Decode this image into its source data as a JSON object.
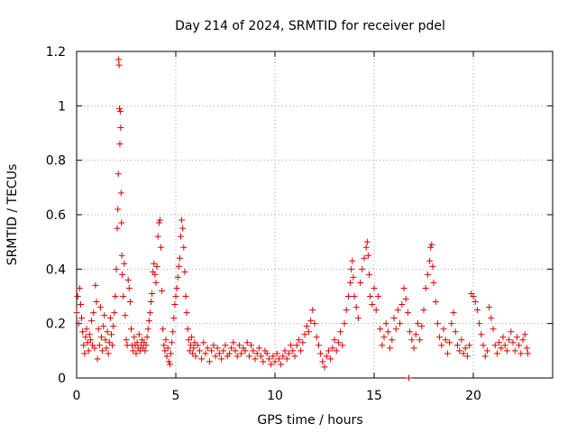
{
  "chart_data": {
    "type": "scatter",
    "title": "Day 214 of 2024, SRMTID for receiver pdel",
    "xlabel": "GPS time / hours",
    "ylabel": "SRMTID / TECUs",
    "xlim": [
      0,
      24
    ],
    "ylim": [
      0,
      1.2
    ],
    "xticks": [
      0,
      5,
      10,
      15,
      20
    ],
    "yticks": [
      0,
      0.2,
      0.4,
      0.6,
      0.8,
      1.0,
      1.2
    ],
    "xtick_labels": [
      "0",
      "5",
      "10",
      "15",
      "20"
    ],
    "ytick_labels": [
      "0",
      "0.2",
      "0.4",
      "0.6",
      "0.8",
      "1",
      "1.2"
    ],
    "grid": true,
    "marker": "+",
    "marker_color": "#e00000",
    "series": [
      {
        "name": "SRMTID",
        "points": [
          [
            0.0,
            0.24
          ],
          [
            0.05,
            0.3
          ],
          [
            0.1,
            0.2
          ],
          [
            0.15,
            0.33
          ],
          [
            0.2,
            0.27
          ],
          [
            0.25,
            0.22
          ],
          [
            0.3,
            0.17
          ],
          [
            0.35,
            0.12
          ],
          [
            0.4,
            0.09
          ],
          [
            0.45,
            0.15
          ],
          [
            0.5,
            0.18
          ],
          [
            0.55,
            0.13
          ],
          [
            0.6,
            0.1
          ],
          [
            0.65,
            0.16
          ],
          [
            0.7,
            0.14
          ],
          [
            0.75,
            0.21
          ],
          [
            0.8,
            0.12
          ],
          [
            0.85,
            0.24
          ],
          [
            0.9,
            0.11
          ],
          [
            0.95,
            0.34
          ],
          [
            1.0,
            0.28
          ],
          [
            1.05,
            0.07
          ],
          [
            1.1,
            0.18
          ],
          [
            1.15,
            0.12
          ],
          [
            1.2,
            0.26
          ],
          [
            1.25,
            0.15
          ],
          [
            1.3,
            0.1
          ],
          [
            1.35,
            0.19
          ],
          [
            1.4,
            0.23
          ],
          [
            1.45,
            0.14
          ],
          [
            1.5,
            0.11
          ],
          [
            1.55,
            0.17
          ],
          [
            1.6,
            0.09
          ],
          [
            1.65,
            0.13
          ],
          [
            1.7,
            0.22
          ],
          [
            1.75,
            0.16
          ],
          [
            1.8,
            0.12
          ],
          [
            1.85,
            0.19
          ],
          [
            1.9,
            0.24
          ],
          [
            1.95,
            0.3
          ],
          [
            2.0,
            0.4
          ],
          [
            2.05,
            0.55
          ],
          [
            2.08,
            0.62
          ],
          [
            2.1,
            0.75
          ],
          [
            2.12,
            1.17
          ],
          [
            2.14,
            1.15
          ],
          [
            2.16,
            0.99
          ],
          [
            2.18,
            0.86
          ],
          [
            2.2,
            0.98
          ],
          [
            2.22,
            0.92
          ],
          [
            2.24,
            0.68
          ],
          [
            2.26,
            0.57
          ],
          [
            2.28,
            0.45
          ],
          [
            2.3,
            0.38
          ],
          [
            2.35,
            0.3
          ],
          [
            2.4,
            0.42
          ],
          [
            2.45,
            0.23
          ],
          [
            2.5,
            0.14
          ],
          [
            2.55,
            0.12
          ],
          [
            2.6,
            0.36
          ],
          [
            2.65,
            0.33
          ],
          [
            2.7,
            0.28
          ],
          [
            2.75,
            0.18
          ],
          [
            2.8,
            0.12
          ],
          [
            2.85,
            0.1
          ],
          [
            2.9,
            0.15
          ],
          [
            2.95,
            0.12
          ],
          [
            3.0,
            0.09
          ],
          [
            3.05,
            0.13
          ],
          [
            3.1,
            0.11
          ],
          [
            3.15,
            0.16
          ],
          [
            3.2,
            0.1
          ],
          [
            3.25,
            0.12
          ],
          [
            3.3,
            0.14
          ],
          [
            3.35,
            0.11
          ],
          [
            3.4,
            0.13
          ],
          [
            3.45,
            0.1
          ],
          [
            3.5,
            0.12
          ],
          [
            3.55,
            0.15
          ],
          [
            3.6,
            0.18
          ],
          [
            3.65,
            0.21
          ],
          [
            3.7,
            0.24
          ],
          [
            3.75,
            0.28
          ],
          [
            3.8,
            0.31
          ],
          [
            3.85,
            0.39
          ],
          [
            3.9,
            0.42
          ],
          [
            3.95,
            0.38
          ],
          [
            4.0,
            0.35
          ],
          [
            4.05,
            0.41
          ],
          [
            4.1,
            0.52
          ],
          [
            4.15,
            0.57
          ],
          [
            4.2,
            0.58
          ],
          [
            4.25,
            0.48
          ],
          [
            4.3,
            0.32
          ],
          [
            4.35,
            0.18
          ],
          [
            4.4,
            0.12
          ],
          [
            4.45,
            0.1
          ],
          [
            4.5,
            0.14
          ],
          [
            4.55,
            0.08
          ],
          [
            4.6,
            0.11
          ],
          [
            4.65,
            0.06
          ],
          [
            4.7,
            0.05
          ],
          [
            4.75,
            0.09
          ],
          [
            4.8,
            0.13
          ],
          [
            4.85,
            0.17
          ],
          [
            4.9,
            0.22
          ],
          [
            4.95,
            0.27
          ],
          [
            5.0,
            0.3
          ],
          [
            5.05,
            0.33
          ],
          [
            5.1,
            0.37
          ],
          [
            5.15,
            0.41
          ],
          [
            5.2,
            0.44
          ],
          [
            5.25,
            0.52
          ],
          [
            5.3,
            0.58
          ],
          [
            5.35,
            0.55
          ],
          [
            5.4,
            0.48
          ],
          [
            5.45,
            0.39
          ],
          [
            5.5,
            0.3
          ],
          [
            5.55,
            0.24
          ],
          [
            5.6,
            0.18
          ],
          [
            5.65,
            0.14
          ],
          [
            5.7,
            0.1
          ],
          [
            5.75,
            0.12
          ],
          [
            5.8,
            0.15
          ],
          [
            5.85,
            0.09
          ],
          [
            5.9,
            0.11
          ],
          [
            5.95,
            0.13
          ],
          [
            6.0,
            0.08
          ],
          [
            6.1,
            0.12
          ],
          [
            6.2,
            0.1
          ],
          [
            6.3,
            0.07
          ],
          [
            6.4,
            0.13
          ],
          [
            6.5,
            0.09
          ],
          [
            6.6,
            0.11
          ],
          [
            6.7,
            0.06
          ],
          [
            6.8,
            0.1
          ],
          [
            6.9,
            0.12
          ],
          [
            7.0,
            0.08
          ],
          [
            7.1,
            0.11
          ],
          [
            7.2,
            0.09
          ],
          [
            7.3,
            0.07
          ],
          [
            7.4,
            0.1
          ],
          [
            7.5,
            0.12
          ],
          [
            7.6,
            0.08
          ],
          [
            7.7,
            0.09
          ],
          [
            7.8,
            0.11
          ],
          [
            7.9,
            0.13
          ],
          [
            8.0,
            0.1
          ],
          [
            8.1,
            0.08
          ],
          [
            8.2,
            0.12
          ],
          [
            8.3,
            0.09
          ],
          [
            8.4,
            0.11
          ],
          [
            8.5,
            0.1
          ],
          [
            8.6,
            0.13
          ],
          [
            8.7,
            0.08
          ],
          [
            8.8,
            0.12
          ],
          [
            8.9,
            0.1
          ],
          [
            9.0,
            0.07
          ],
          [
            9.1,
            0.09
          ],
          [
            9.2,
            0.11
          ],
          [
            9.3,
            0.08
          ],
          [
            9.4,
            0.06
          ],
          [
            9.5,
            0.1
          ],
          [
            9.6,
            0.09
          ],
          [
            9.7,
            0.07
          ],
          [
            9.8,
            0.05
          ],
          [
            9.9,
            0.08
          ],
          [
            10.0,
            0.06
          ],
          [
            10.1,
            0.09
          ],
          [
            10.2,
            0.07
          ],
          [
            10.3,
            0.05
          ],
          [
            10.4,
            0.08
          ],
          [
            10.5,
            0.1
          ],
          [
            10.6,
            0.07
          ],
          [
            10.7,
            0.09
          ],
          [
            10.8,
            0.12
          ],
          [
            10.9,
            0.1
          ],
          [
            11.0,
            0.08
          ],
          [
            11.1,
            0.12
          ],
          [
            11.2,
            0.14
          ],
          [
            11.3,
            0.1
          ],
          [
            11.4,
            0.13
          ],
          [
            11.5,
            0.16
          ],
          [
            11.6,
            0.19
          ],
          [
            11.7,
            0.17
          ],
          [
            11.8,
            0.21
          ],
          [
            11.9,
            0.25
          ],
          [
            12.0,
            0.2
          ],
          [
            12.1,
            0.15
          ],
          [
            12.2,
            0.12
          ],
          [
            12.3,
            0.09
          ],
          [
            12.4,
            0.06
          ],
          [
            12.5,
            0.04
          ],
          [
            12.6,
            0.08
          ],
          [
            12.7,
            0.1
          ],
          [
            12.8,
            0.07
          ],
          [
            12.9,
            0.11
          ],
          [
            13.0,
            0.14
          ],
          [
            13.1,
            0.1
          ],
          [
            13.2,
            0.13
          ],
          [
            13.3,
            0.17
          ],
          [
            13.4,
            0.12
          ],
          [
            13.5,
            0.2
          ],
          [
            13.6,
            0.25
          ],
          [
            13.7,
            0.3
          ],
          [
            13.8,
            0.35
          ],
          [
            13.85,
            0.4
          ],
          [
            13.9,
            0.43
          ],
          [
            13.95,
            0.37
          ],
          [
            14.0,
            0.3
          ],
          [
            14.1,
            0.26
          ],
          [
            14.2,
            0.22
          ],
          [
            14.3,
            0.35
          ],
          [
            14.4,
            0.4
          ],
          [
            14.5,
            0.44
          ],
          [
            14.6,
            0.48
          ],
          [
            14.65,
            0.5
          ],
          [
            14.7,
            0.45
          ],
          [
            14.75,
            0.38
          ],
          [
            14.8,
            0.3
          ],
          [
            14.9,
            0.27
          ],
          [
            15.0,
            0.33
          ],
          [
            15.1,
            0.25
          ],
          [
            15.2,
            0.3
          ],
          [
            15.3,
            0.18
          ],
          [
            15.4,
            0.12
          ],
          [
            15.5,
            0.15
          ],
          [
            15.6,
            0.2
          ],
          [
            15.7,
            0.17
          ],
          [
            15.8,
            0.11
          ],
          [
            15.9,
            0.14
          ],
          [
            16.0,
            0.22
          ],
          [
            16.1,
            0.18
          ],
          [
            16.2,
            0.25
          ],
          [
            16.3,
            0.2
          ],
          [
            16.4,
            0.27
          ],
          [
            16.5,
            0.33
          ],
          [
            16.6,
            0.29
          ],
          [
            16.7,
            0.24
          ],
          [
            16.75,
            0.0
          ],
          [
            16.8,
            0.17
          ],
          [
            16.9,
            0.14
          ],
          [
            17.0,
            0.11
          ],
          [
            17.1,
            0.16
          ],
          [
            17.2,
            0.2
          ],
          [
            17.3,
            0.14
          ],
          [
            17.4,
            0.19
          ],
          [
            17.5,
            0.25
          ],
          [
            17.6,
            0.33
          ],
          [
            17.7,
            0.38
          ],
          [
            17.8,
            0.43
          ],
          [
            17.85,
            0.48
          ],
          [
            17.9,
            0.49
          ],
          [
            17.95,
            0.41
          ],
          [
            18.0,
            0.35
          ],
          [
            18.1,
            0.28
          ],
          [
            18.2,
            0.2
          ],
          [
            18.3,
            0.15
          ],
          [
            18.4,
            0.12
          ],
          [
            18.5,
            0.18
          ],
          [
            18.6,
            0.14
          ],
          [
            18.7,
            0.09
          ],
          [
            18.8,
            0.13
          ],
          [
            18.9,
            0.2
          ],
          [
            19.0,
            0.24
          ],
          [
            19.1,
            0.17
          ],
          [
            19.2,
            0.12
          ],
          [
            19.3,
            0.1
          ],
          [
            19.4,
            0.14
          ],
          [
            19.5,
            0.09
          ],
          [
            19.6,
            0.11
          ],
          [
            19.7,
            0.08
          ],
          [
            19.8,
            0.12
          ],
          [
            19.9,
            0.31
          ],
          [
            20.0,
            0.3
          ],
          [
            20.1,
            0.28
          ],
          [
            20.2,
            0.25
          ],
          [
            20.3,
            0.2
          ],
          [
            20.4,
            0.16
          ],
          [
            20.5,
            0.12
          ],
          [
            20.6,
            0.08
          ],
          [
            20.7,
            0.1
          ],
          [
            20.8,
            0.26
          ],
          [
            20.9,
            0.22
          ],
          [
            21.0,
            0.18
          ],
          [
            21.1,
            0.12
          ],
          [
            21.2,
            0.09
          ],
          [
            21.3,
            0.13
          ],
          [
            21.4,
            0.11
          ],
          [
            21.5,
            0.15
          ],
          [
            21.6,
            0.12
          ],
          [
            21.7,
            0.1
          ],
          [
            21.8,
            0.14
          ],
          [
            21.9,
            0.17
          ],
          [
            22.0,
            0.13
          ],
          [
            22.1,
            0.1
          ],
          [
            22.2,
            0.15
          ],
          [
            22.3,
            0.12
          ],
          [
            22.4,
            0.09
          ],
          [
            22.5,
            0.14
          ],
          [
            22.6,
            0.16
          ],
          [
            22.7,
            0.11
          ],
          [
            22.75,
            0.09
          ]
        ]
      }
    ]
  }
}
